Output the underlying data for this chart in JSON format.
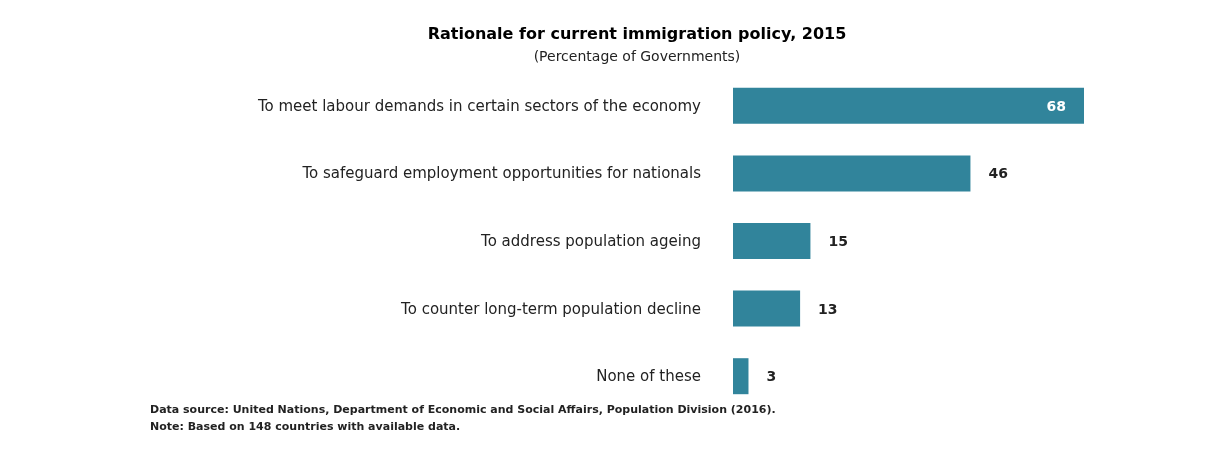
{
  "chart_data": {
    "type": "bar",
    "orientation": "horizontal",
    "title": "Rationale for current immigration policy, 2015",
    "subtitle": "(Percentage of Governments)",
    "categories": [
      "To meet labour demands in certain sectors of the economy",
      "To safeguard employment opportunities for nationals",
      "To address population ageing",
      "To counter long-term population decline",
      "None of these"
    ],
    "values": [
      68,
      46,
      15,
      13,
      3
    ],
    "color": "#31849b",
    "data_labels": true,
    "annotations": [
      "Data source: United Nations, Department of Economic and Social Affairs, Population Division (2016).",
      "Note: Based on 148 countries with available data."
    ]
  }
}
